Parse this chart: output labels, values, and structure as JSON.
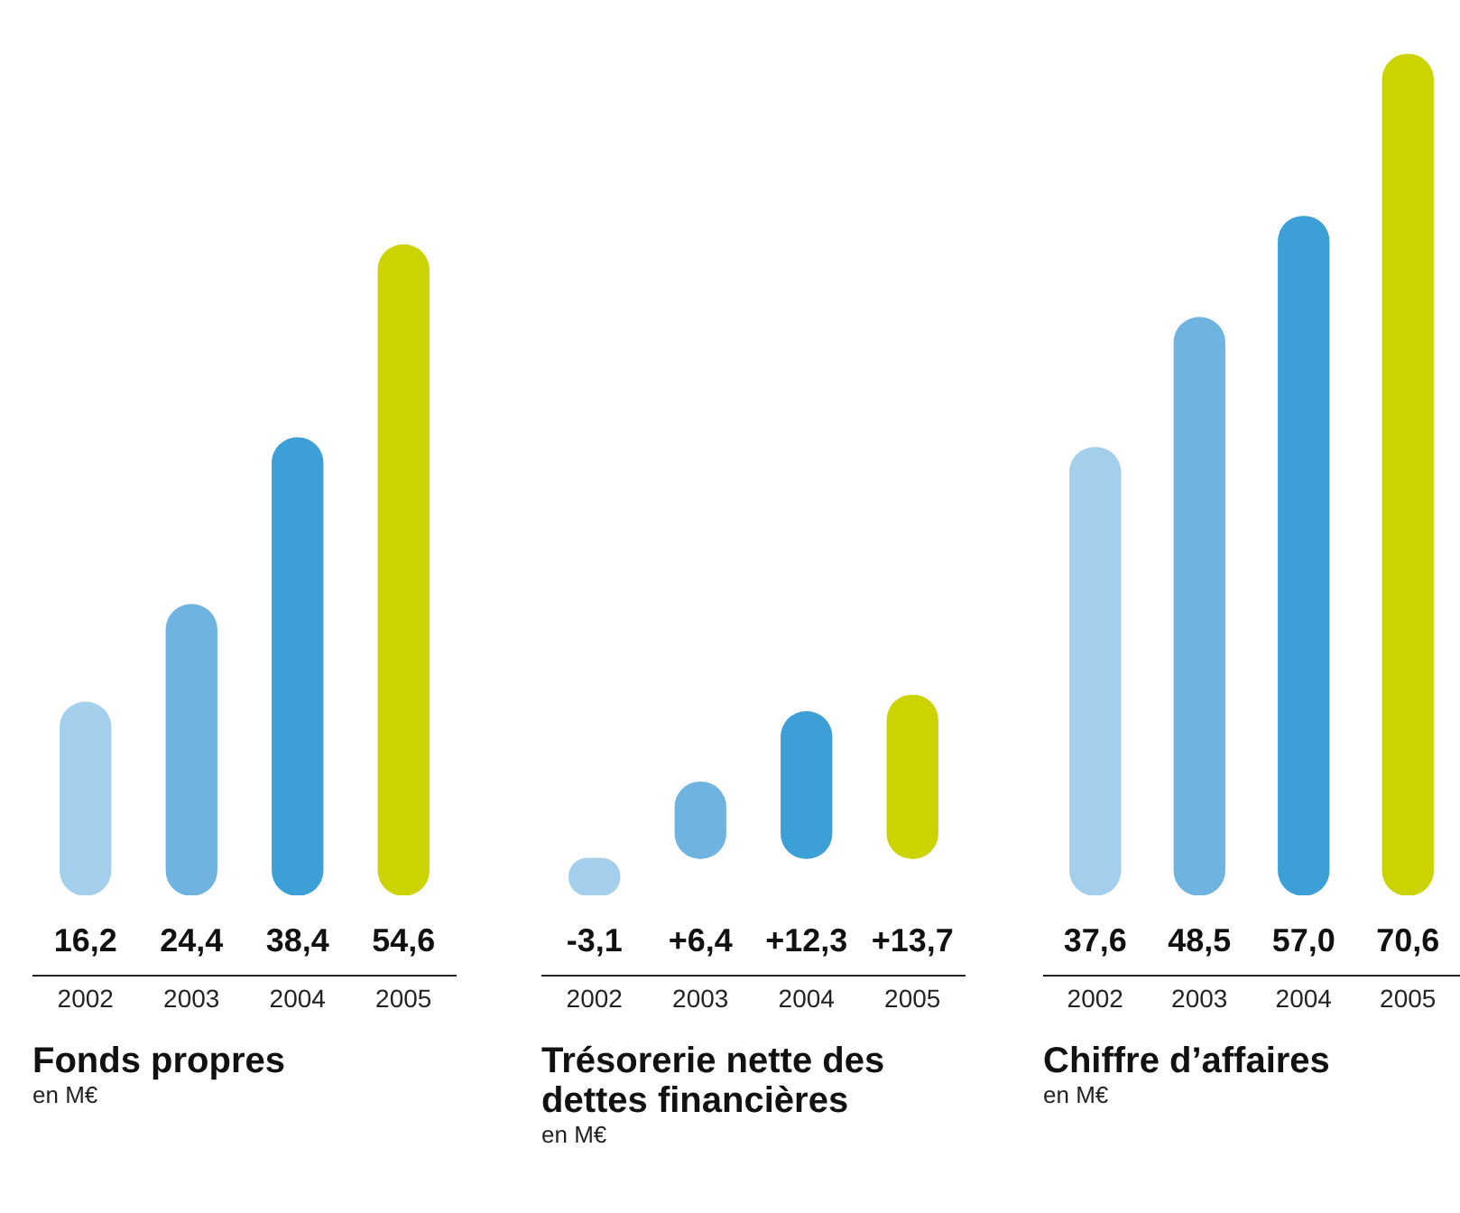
{
  "chart_data": [
    {
      "type": "bar",
      "title": "Fonds propres",
      "subtitle": "en M€",
      "categories": [
        "2002",
        "2003",
        "2004",
        "2005"
      ],
      "values": [
        16.2,
        24.4,
        38.4,
        54.6
      ],
      "colors": [
        "#a4cfec",
        "#6fb4e0",
        "#3c9fd6",
        "#cbd300"
      ],
      "value_labels": [
        "16,2",
        "24,4",
        "38,4",
        "54,6"
      ]
    },
    {
      "type": "bar",
      "title": "Trésorerie nette des dettes financières",
      "subtitle": "en M€",
      "categories": [
        "2002",
        "2003",
        "2004",
        "2005"
      ],
      "values": [
        -3.1,
        6.4,
        12.3,
        13.7
      ],
      "colors": [
        "#a4cfec",
        "#6fb4e0",
        "#3c9fd6",
        "#cbd300"
      ],
      "value_labels": [
        "-3,1",
        "+6,4",
        "+12,3",
        "+13,7"
      ]
    },
    {
      "type": "bar",
      "title": "Chiffre d’affaires",
      "subtitle": "en M€",
      "categories": [
        "2002",
        "2003",
        "2004",
        "2005"
      ],
      "values": [
        37.6,
        48.5,
        57.0,
        70.6
      ],
      "colors": [
        "#a4cfec",
        "#6fb4e0",
        "#3c9fd6",
        "#cbd300"
      ],
      "value_labels": [
        "37,6",
        "48,5",
        "57,0",
        "70,6"
      ]
    }
  ]
}
